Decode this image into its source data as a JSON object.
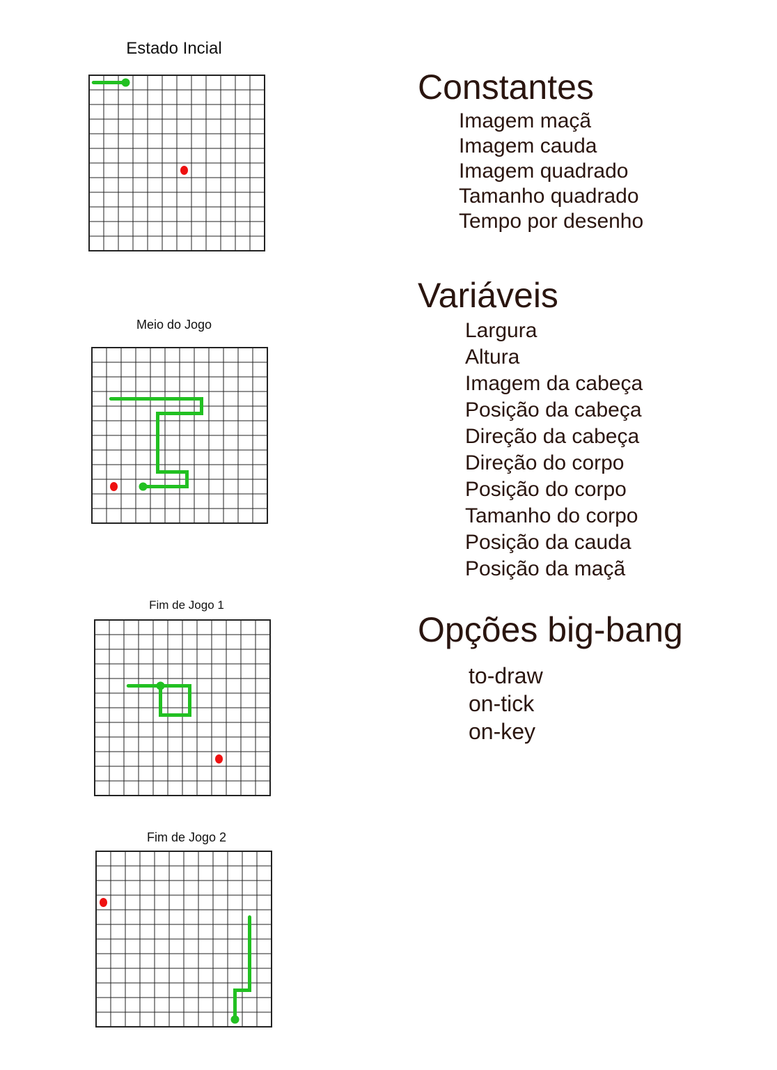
{
  "panels": [
    {
      "title": "Estado Incial",
      "snake": [
        [
          0.3,
          0.5
        ],
        [
          2.5,
          0.5
        ]
      ],
      "head": [
        2.5,
        0.5
      ],
      "apple": [
        6.5,
        6.5
      ],
      "colors": {
        "snake": "#22c022",
        "apple": "#ee1111",
        "grid": "#222222"
      }
    },
    {
      "title": "Meio do Jogo",
      "snake": [
        [
          1.3,
          3.5
        ],
        [
          7.5,
          3.5
        ],
        [
          7.5,
          4.5
        ],
        [
          4.5,
          4.5
        ],
        [
          4.5,
          8.5
        ],
        [
          6.5,
          8.5
        ],
        [
          6.5,
          9.5
        ],
        [
          3.5,
          9.5
        ]
      ],
      "head": [
        3.5,
        9.5
      ],
      "apple": [
        1.5,
        9.5
      ],
      "colors": {
        "snake": "#22c022",
        "apple": "#ee1111",
        "grid": "#222222"
      }
    },
    {
      "title": "Fim de Jogo 1",
      "snake": [
        [
          2.3,
          4.5
        ],
        [
          6.5,
          4.5
        ],
        [
          6.5,
          6.5
        ],
        [
          4.5,
          6.5
        ],
        [
          4.5,
          4.5
        ]
      ],
      "head": [
        4.5,
        4.5
      ],
      "apple": [
        8.5,
        9.5
      ],
      "colors": {
        "snake": "#22c022",
        "apple": "#ee1111",
        "grid": "#222222"
      }
    },
    {
      "title": "Fim de Jogo 2",
      "snake": [
        [
          10.5,
          4.5
        ],
        [
          10.5,
          9.5
        ],
        [
          9.5,
          9.5
        ],
        [
          9.5,
          11.5
        ]
      ],
      "head": [
        9.5,
        11.5
      ],
      "apple": [
        0.5,
        3.5
      ],
      "colors": {
        "snake": "#22c022",
        "apple": "#ee1111",
        "grid": "#222222"
      }
    }
  ],
  "grid_cells": 12,
  "constantes": {
    "heading": "Constantes",
    "items": [
      "Imagem maçã",
      "Imagem cauda",
      "Imagem quadrado",
      "Tamanho quadrado",
      "Tempo por desenho"
    ]
  },
  "variaveis": {
    "heading": "Variáveis",
    "items": [
      "Largura",
      "Altura",
      "Imagem da cabeça",
      "Posição da cabeça",
      "Direção da cabeça",
      "Direção do corpo",
      "Posição do corpo",
      "Tamanho do corpo",
      "Posição da cauda",
      "Posição da maçã"
    ]
  },
  "bigbang": {
    "heading": "Opções big-bang",
    "items": [
      "to-draw",
      "on-tick",
      "on-key"
    ]
  }
}
